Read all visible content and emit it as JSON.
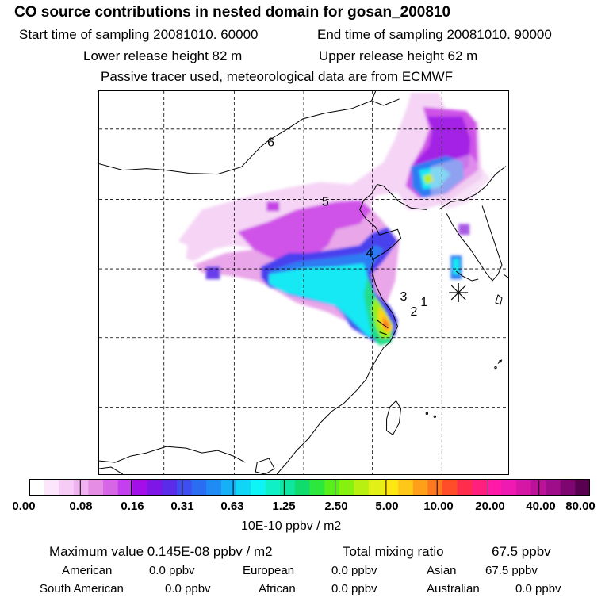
{
  "header": {
    "title": "CO  source contributions in nested domain for gosan_200810",
    "start_time": "Start time of sampling 20081010. 60000",
    "end_time": "End time of sampling 20081010. 90000",
    "lower_release": "Lower release height   82 m",
    "upper_release": "Upper release height   62 m",
    "tracer_note": "Passive tracer used, meteorological data are from ECMWF"
  },
  "map": {
    "site_labels": [
      "1",
      "2",
      "3",
      "4",
      "5",
      "6"
    ],
    "receptor_icon": "asterisk-receptor-icon"
  },
  "colorbar": {
    "ticks": [
      "0.00",
      "0.08",
      "0.16",
      "0.31",
      "0.63",
      "1.25",
      "2.50",
      "5.00",
      "10.00",
      "20.00",
      "40.00",
      "80.00"
    ],
    "unit": "10E-10 ppbv / m2",
    "colors": [
      "#ffffff",
      "#fbe6fb",
      "#f6ccf6",
      "#efb2ef",
      "#e58ce5",
      "#d766e6",
      "#c33fef",
      "#a20fe8",
      "#7d16e6",
      "#5a2be8",
      "#3f4fef",
      "#2a6cf2",
      "#1f8cf5",
      "#16b0f7",
      "#10d6f6",
      "#0ff5f5",
      "#10f0c6",
      "#0fe6a0",
      "#10dc6e",
      "#2ce83c",
      "#58ee1a",
      "#86f00f",
      "#b8f011",
      "#e2f018",
      "#ffe812",
      "#ffc818",
      "#ffa018",
      "#ff7820",
      "#ff4d2a",
      "#ff2c4c",
      "#ff1f7c",
      "#ff1aa8",
      "#ee1ab2",
      "#d616a6",
      "#bc129a",
      "#a00d8a",
      "#7e0670",
      "#5a0050"
    ]
  },
  "summary": {
    "max_label": "Maximum value  0.145E-08 ppbv / m2",
    "total_label": "Total mixing ratio",
    "total_value": "67.5 ppbv",
    "american_label": "American",
    "american_value": "0.0 ppbv",
    "european_label": "European",
    "european_value": "0.0 ppbv",
    "asian_label": "Asian",
    "asian_value": "67.5 ppbv",
    "south_american_label": "South American",
    "south_american_value": "0.0 ppbv",
    "african_label": "African",
    "african_value": "0.0 ppbv",
    "australian_label": "Australian",
    "australian_value": "0.0 ppbv"
  }
}
